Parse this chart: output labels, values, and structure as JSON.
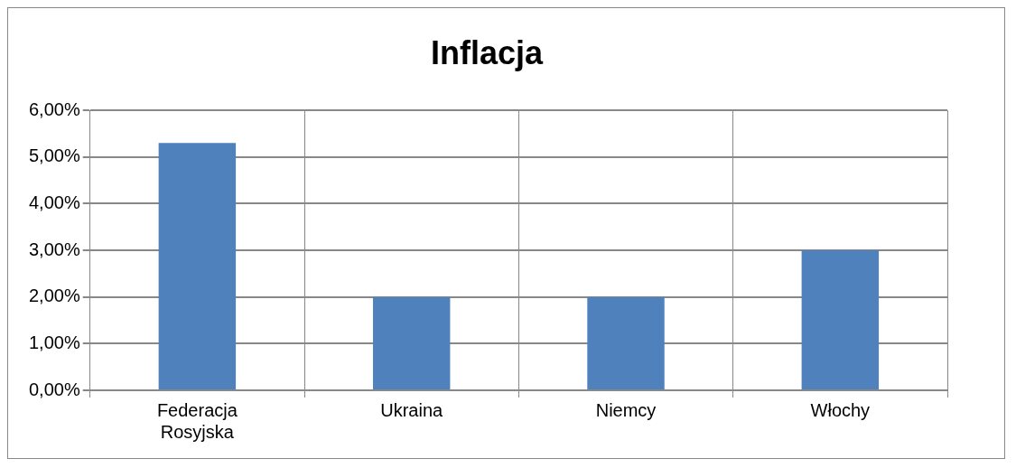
{
  "chart_data": {
    "type": "bar",
    "title": "Inflacja",
    "categories": [
      "Federacja Rosyjska",
      "Ukraina",
      "Niemcy",
      "Włochy"
    ],
    "values": [
      5.3,
      2.0,
      2.0,
      3.0
    ],
    "color": "#4f81bd",
    "ylim": [
      0,
      6
    ],
    "yticks": [
      {
        "value": 0,
        "label": "0,00%"
      },
      {
        "value": 1,
        "label": "1,00%"
      },
      {
        "value": 2,
        "label": "2,00%"
      },
      {
        "value": 3,
        "label": "3,00%"
      },
      {
        "value": 4,
        "label": "4,00%"
      },
      {
        "value": 5,
        "label": "5,00%"
      },
      {
        "value": 6,
        "label": "6,00%"
      }
    ],
    "grid": true
  }
}
